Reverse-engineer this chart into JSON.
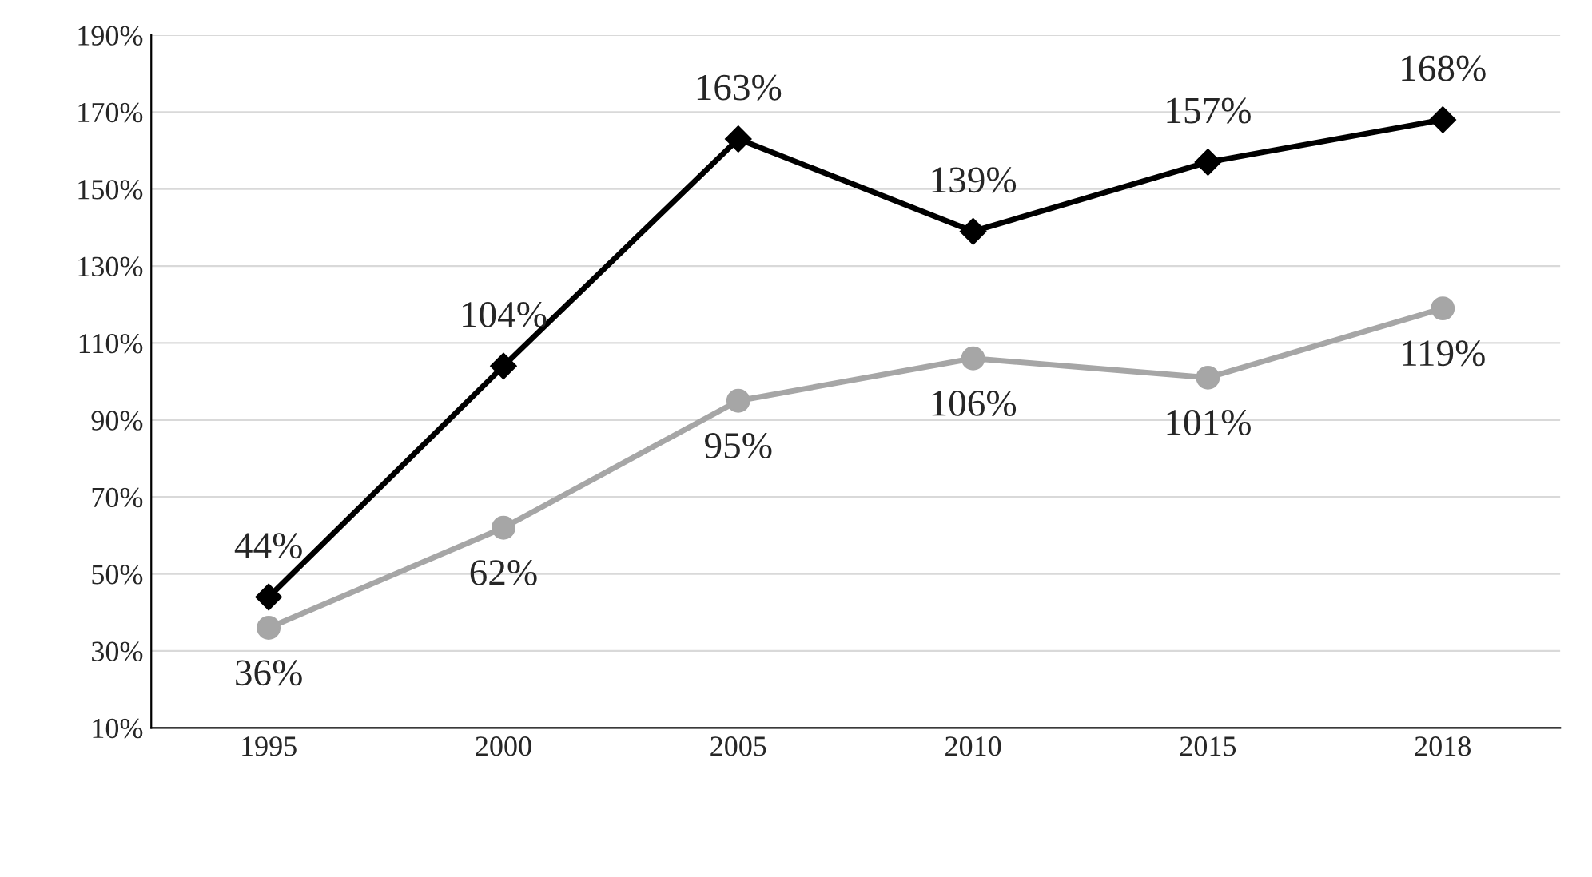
{
  "chart_data": {
    "type": "line",
    "categories": [
      "1995",
      "2000",
      "2005",
      "2010",
      "2015",
      "2018"
    ],
    "series": [
      {
        "color": "#000000",
        "marker": "diamond",
        "values": [
          44,
          104,
          163,
          139,
          157,
          168
        ],
        "value_labels": [
          "44%",
          "104%",
          "163%",
          "139%",
          "157%",
          "168%"
        ]
      },
      {
        "color": "#a6a6a6",
        "marker": "circle",
        "values": [
          36,
          62,
          95,
          106,
          101,
          119
        ],
        "value_labels": [
          "36%",
          "62%",
          "95%",
          "106%",
          "101%",
          "119%"
        ]
      }
    ],
    "ylim": [
      10,
      190
    ],
    "yticks": [
      {
        "value": 10,
        "label": "10%"
      },
      {
        "value": 30,
        "label": "30%"
      },
      {
        "value": 50,
        "label": "50%"
      },
      {
        "value": 70,
        "label": "70%"
      },
      {
        "value": 90,
        "label": "90%"
      },
      {
        "value": 110,
        "label": "110%"
      },
      {
        "value": 130,
        "label": "130%"
      },
      {
        "value": 150,
        "label": "150%"
      },
      {
        "value": 170,
        "label": "170%"
      },
      {
        "value": 190,
        "label": "190%"
      }
    ],
    "grid": "y"
  }
}
